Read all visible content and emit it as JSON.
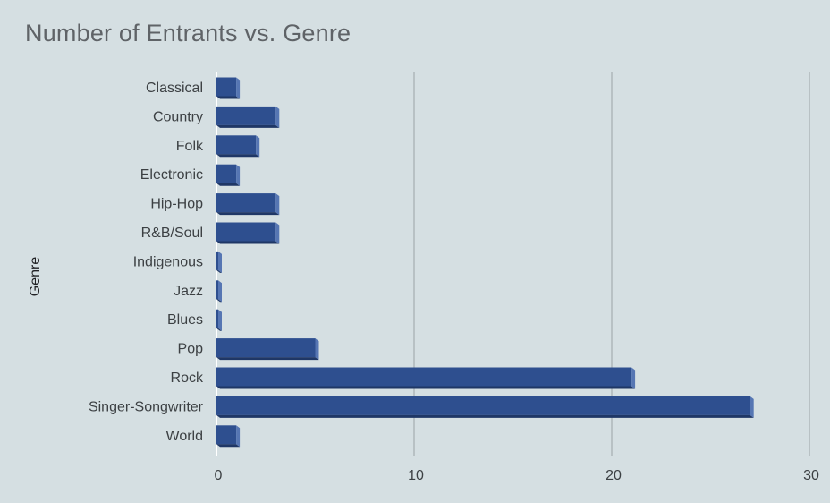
{
  "chart_data": {
    "type": "bar",
    "orientation": "horizontal",
    "title": "Number of Entrants vs. Genre",
    "xlabel": "",
    "ylabel": "Genre",
    "categories": [
      "Classical",
      "Country",
      "Folk",
      "Electronic",
      "Hip-Hop",
      "R&B/Soul",
      "Indigenous",
      "Jazz",
      "Blues",
      "Pop",
      "Rock",
      "Singer-Songwriter",
      "World"
    ],
    "values": [
      1,
      3,
      2,
      1,
      3,
      3,
      0,
      0,
      0,
      5,
      21,
      27,
      1
    ],
    "xlim": [
      0,
      30
    ],
    "xticks": [
      0,
      10,
      20,
      30
    ],
    "grid": "vertical",
    "legend": "none",
    "bar_color": "#2e4f8f",
    "bar_side_color": "#5676b3",
    "bar_shadow_color": "#1f3766"
  }
}
